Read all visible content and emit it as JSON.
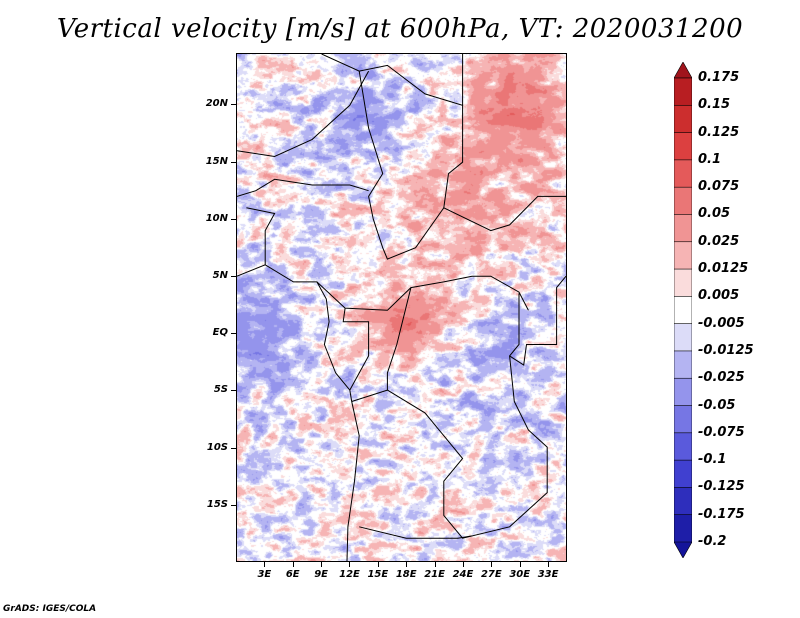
{
  "chart_data": {
    "type": "heatmap",
    "title": "Vertical velocity [m/s] at 600hPa, VT: 2020031200",
    "variable": "Vertical velocity",
    "units": "m/s",
    "level": "600hPa",
    "valid_time": "2020031200",
    "xlabel": "",
    "ylabel": "",
    "x_ticks": [
      "3E",
      "6E",
      "9E",
      "12E",
      "15E",
      "18E",
      "21E",
      "24E",
      "27E",
      "30E",
      "33E"
    ],
    "x_tick_values": [
      3,
      6,
      9,
      12,
      15,
      18,
      21,
      24,
      27,
      30,
      33
    ],
    "y_ticks": [
      "20N",
      "15N",
      "10N",
      "5N",
      "EQ",
      "5S",
      "10S",
      "15S"
    ],
    "y_tick_values": [
      20,
      15,
      10,
      5,
      0,
      -5,
      -10,
      -15
    ],
    "xlim": [
      0,
      35
    ],
    "ylim": [
      -20,
      24.5
    ],
    "grid": false,
    "colorbar": {
      "placement": "right",
      "levels": [
        "0.175",
        "0.15",
        "0.125",
        "0.1",
        "0.075",
        "0.05",
        "0.025",
        "0.0125",
        "0.005",
        "-0.005",
        "-0.0125",
        "-0.025",
        "-0.05",
        "-0.075",
        "-0.1",
        "-0.125",
        "-0.175",
        "-0.2"
      ],
      "colors": [
        "#a0141c",
        "#b81e22",
        "#cc2e2e",
        "#dc4040",
        "#e45a5a",
        "#ea7676",
        "#f09494",
        "#f6b4b4",
        "#fadcdc",
        "#ffffff",
        "#dcdcf8",
        "#b4b4f2",
        "#9494ec",
        "#7676e4",
        "#5a5adc",
        "#4040d0",
        "#2e2ebc",
        "#1e1ea8",
        "#14149a"
      ],
      "extend": "both"
    },
    "notes": "Field is a spatial contour-fill of vertical velocity over Central Africa; mixed positive (red) and negative (blue) values with strongest positive cells near 0-5N, 15-25E and north-east (20-24N, 28-33E); predominantly negative over west coast and 15-22N, 10-20E."
  },
  "footer": "GrADS: IGES/COLA"
}
